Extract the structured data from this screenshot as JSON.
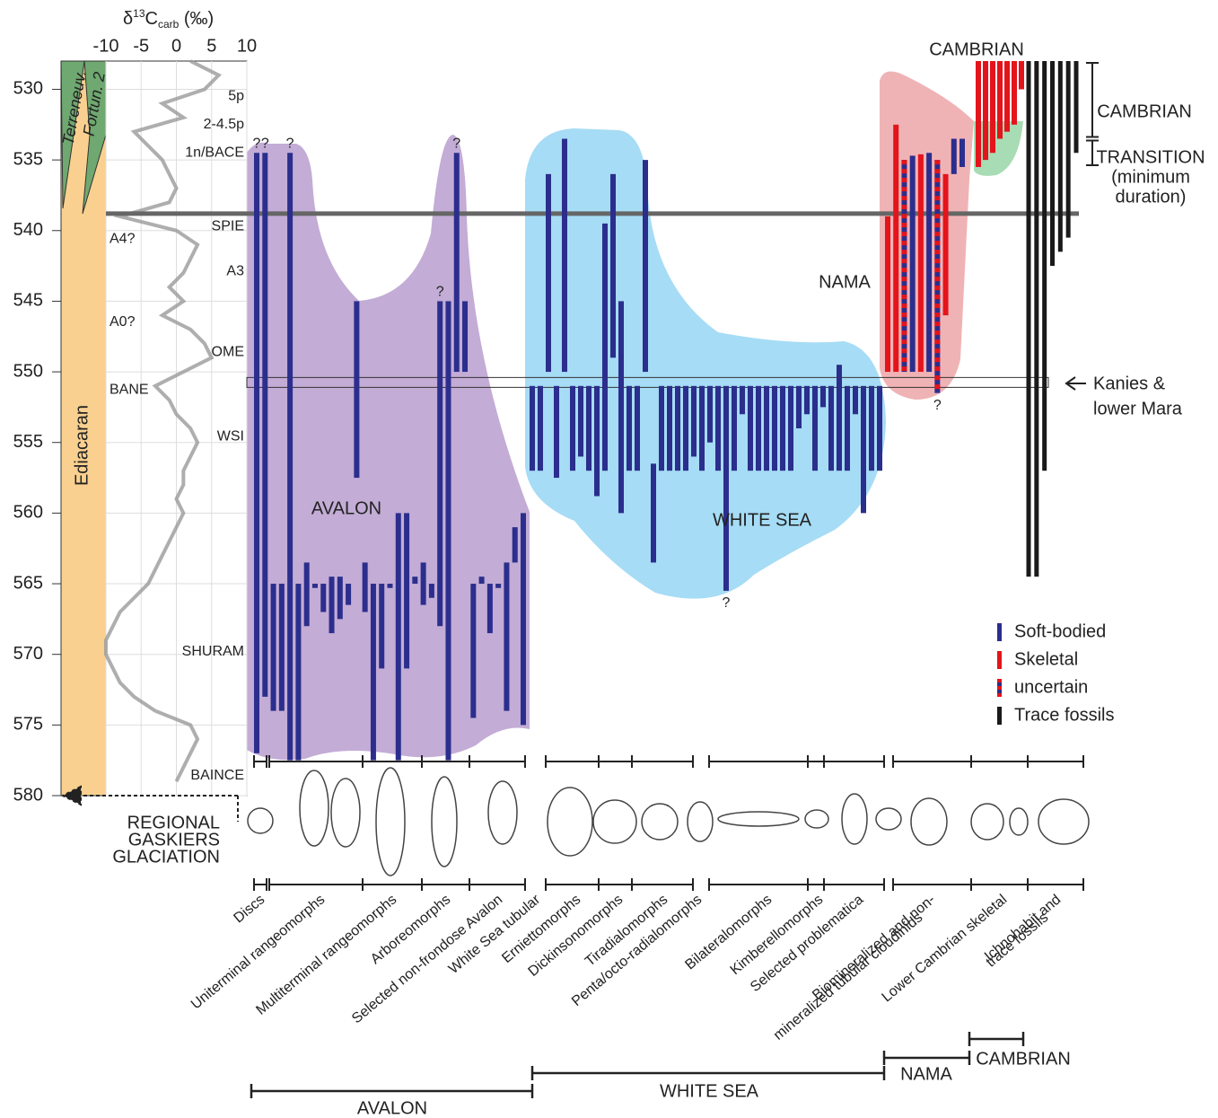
{
  "chart_data": {
    "type": "range",
    "ylim": [
      528,
      580
    ],
    "yticks": [
      530,
      535,
      540,
      545,
      550,
      555,
      560,
      565,
      570,
      575,
      580
    ],
    "isotope": {
      "title_parts": [
        "δ",
        "13",
        "C",
        "carb",
        "(‰)"
      ],
      "xlim": [
        -10,
        10
      ],
      "xticks": [
        -10,
        -5,
        0,
        5,
        10
      ],
      "color": "#9a9a9a",
      "ages": [
        528,
        529,
        530,
        531,
        532,
        533,
        534,
        535,
        536,
        537,
        538,
        539,
        540,
        541,
        542,
        543,
        544,
        545,
        546,
        547,
        548,
        549,
        550,
        551,
        552,
        553,
        554,
        555,
        556,
        557,
        558,
        559,
        560,
        561,
        562,
        563,
        564,
        565,
        566,
        567,
        568,
        569,
        570,
        571,
        572,
        573,
        574,
        575,
        576,
        577,
        578,
        579
      ],
      "values": [
        2,
        6,
        4,
        -2,
        1,
        -6,
        -4,
        -2,
        -1,
        0,
        -1,
        -8,
        0,
        3,
        2,
        1,
        -1,
        1,
        -2,
        2,
        4,
        5,
        1,
        -3,
        -1,
        0,
        2,
        3,
        2,
        1,
        1,
        0,
        1,
        0,
        -1,
        -2,
        -3,
        -4,
        -6,
        -8,
        -9,
        -10,
        -10,
        -9,
        -8,
        -6,
        -3,
        2,
        3,
        2,
        1,
        0
      ],
      "excursions": [
        {
          "label": "5p",
          "age": 530.5
        },
        {
          "label": "2-4.5p",
          "age": 532.5
        },
        {
          "label": "1n/BACE",
          "age": 534.5
        },
        {
          "label": "SPIE",
          "age": 539.7
        },
        {
          "label": "A4?",
          "age": 540.6
        },
        {
          "label": "A3",
          "age": 542.9
        },
        {
          "label": "A0?",
          "age": 546.5
        },
        {
          "label": "OME",
          "age": 548.6
        },
        {
          "label": "BANE",
          "age": 551.3
        },
        {
          "label": "WSI",
          "age": 554.6
        },
        {
          "label": "SHURAM",
          "age": 569.8
        },
        {
          "label": "BAINCE",
          "age": 578.6
        }
      ]
    },
    "chronostrat": [
      "Terreneuv.",
      "Fortun. 2",
      "Ediacaran"
    ],
    "boundary": 538.8,
    "kanies": {
      "label": [
        "Kanies &",
        "lower Mara"
      ],
      "range": [
        550.4,
        551.1
      ]
    },
    "legend": [
      {
        "kind": "soft",
        "name": "Soft-bodied",
        "color": "#2b2e8c"
      },
      {
        "kind": "skeletal",
        "name": "Skeletal",
        "color": "#e3141b"
      },
      {
        "kind": "uncertain",
        "name": "uncertain",
        "color": "#e3141b"
      },
      {
        "kind": "trace",
        "name": "Trace fossils",
        "color": "#1a1a1a"
      }
    ],
    "groups": [
      {
        "name": "AVALON",
        "bars": [
          {
            "range": [
              534.5,
              577
            ],
            "kind": "soft",
            "note": "?",
            "note_at": "top"
          },
          {
            "range": [
              534.5,
              573
            ],
            "kind": "soft",
            "note": "?",
            "note_at": "top"
          },
          {
            "range": [
              565,
              574
            ],
            "kind": "soft"
          },
          {
            "range": [
              565,
              574
            ],
            "kind": "soft"
          },
          {
            "range": [
              534.5,
              577.5
            ],
            "kind": "soft",
            "note": "?",
            "note_at": "top"
          },
          {
            "range": [
              565,
              577.5
            ],
            "kind": "soft"
          },
          {
            "range": [
              563.5,
              568
            ],
            "kind": "soft"
          },
          {
            "range": [
              565,
              565.3
            ],
            "kind": "soft"
          },
          {
            "range": [
              565,
              567
            ],
            "kind": "soft"
          },
          {
            "range": [
              564.5,
              568.5
            ],
            "kind": "soft"
          },
          {
            "range": [
              564.5,
              567.5
            ],
            "kind": "soft"
          },
          {
            "range": [
              565,
              566.5
            ],
            "kind": "soft"
          },
          {
            "range": [
              545,
              557.5
            ],
            "kind": "soft"
          },
          {
            "range": [
              563.5,
              567
            ],
            "kind": "soft"
          },
          {
            "range": [
              565,
              577.5
            ],
            "kind": "soft"
          },
          {
            "range": [
              565,
              571
            ],
            "kind": "soft"
          },
          {
            "range": [
              565,
              565.3
            ],
            "kind": "soft"
          },
          {
            "range": [
              560,
              577.5
            ],
            "kind": "soft"
          },
          {
            "range": [
              560,
              571
            ],
            "kind": "soft"
          },
          {
            "range": [
              564.5,
              565
            ],
            "kind": "soft"
          },
          {
            "range": [
              563.5,
              566.5
            ],
            "kind": "soft"
          },
          {
            "range": [
              565,
              566
            ],
            "kind": "soft"
          },
          {
            "range": [
              545,
              568
            ],
            "kind": "soft",
            "note": "?",
            "note_at": "top"
          },
          {
            "range": [
              545,
              577.5
            ],
            "kind": "soft"
          },
          {
            "range": [
              534.5,
              550
            ],
            "kind": "soft",
            "note": "?",
            "note_at": "top"
          },
          {
            "range": [
              545,
              550
            ],
            "kind": "soft"
          },
          {
            "range": [
              565,
              574.5
            ],
            "kind": "soft"
          },
          {
            "range": [
              564.5,
              565
            ],
            "kind": "soft"
          },
          {
            "range": [
              565,
              568.5
            ],
            "kind": "soft"
          },
          {
            "range": [
              565,
              565.3
            ],
            "kind": "soft"
          },
          {
            "range": [
              563.5,
              574
            ],
            "kind": "soft"
          },
          {
            "range": [
              561,
              563.5
            ],
            "kind": "soft"
          },
          {
            "range": [
              560,
              575
            ],
            "kind": "soft"
          }
        ]
      },
      {
        "name": "WHITE SEA",
        "bars": [
          {
            "range": [
              551,
              557
            ],
            "kind": "soft"
          },
          {
            "range": [
              551,
              557
            ],
            "kind": "soft"
          },
          {
            "range": [
              536,
              550
            ],
            "kind": "soft"
          },
          {
            "range": [
              551,
              557.5
            ],
            "kind": "soft"
          },
          {
            "range": [
              533.5,
              550
            ],
            "kind": "soft"
          },
          {
            "range": [
              551,
              557
            ],
            "kind": "soft"
          },
          {
            "range": [
              551,
              556
            ],
            "kind": "soft"
          },
          {
            "range": [
              551,
              557
            ],
            "kind": "soft"
          },
          {
            "range": [
              551,
              558.8
            ],
            "kind": "soft"
          },
          {
            "range": [
              539.5,
              557
            ],
            "kind": "soft"
          },
          {
            "range": [
              536,
              549
            ],
            "kind": "soft"
          },
          {
            "range": [
              545,
              560
            ],
            "kind": "soft"
          },
          {
            "range": [
              551,
              557
            ],
            "kind": "soft"
          },
          {
            "range": [
              551,
              557
            ],
            "kind": "soft"
          },
          {
            "range": [
              535,
              550
            ],
            "kind": "soft"
          },
          {
            "range": [
              556.5,
              563.5
            ],
            "kind": "soft"
          },
          {
            "range": [
              551,
              557
            ],
            "kind": "soft"
          },
          {
            "range": [
              551,
              557
            ],
            "kind": "soft"
          },
          {
            "range": [
              551,
              557
            ],
            "kind": "soft"
          },
          {
            "range": [
              551,
              557
            ],
            "kind": "soft"
          },
          {
            "range": [
              551,
              556
            ],
            "kind": "soft"
          },
          {
            "range": [
              551,
              557
            ],
            "kind": "soft"
          },
          {
            "range": [
              551,
              555
            ],
            "kind": "soft"
          },
          {
            "range": [
              551,
              557
            ],
            "kind": "soft"
          },
          {
            "range": [
              551,
              565.5
            ],
            "kind": "soft",
            "note": "?",
            "note_at": "bottom"
          },
          {
            "range": [
              551,
              557
            ],
            "kind": "soft"
          },
          {
            "range": [
              551,
              553
            ],
            "kind": "soft"
          },
          {
            "range": [
              551,
              557
            ],
            "kind": "soft"
          },
          {
            "range": [
              551,
              557
            ],
            "kind": "soft"
          },
          {
            "range": [
              551,
              557
            ],
            "kind": "soft"
          },
          {
            "range": [
              551,
              557
            ],
            "kind": "soft"
          },
          {
            "range": [
              551,
              557
            ],
            "kind": "soft"
          },
          {
            "range": [
              551,
              557
            ],
            "kind": "soft"
          },
          {
            "range": [
              551,
              554
            ],
            "kind": "soft"
          },
          {
            "range": [
              551,
              553
            ],
            "kind": "soft"
          },
          {
            "range": [
              551,
              557
            ],
            "kind": "soft"
          },
          {
            "range": [
              551,
              552.5
            ],
            "kind": "soft"
          },
          {
            "range": [
              551,
              557
            ],
            "kind": "soft"
          },
          {
            "range": [
              549.5,
              557
            ],
            "kind": "soft"
          },
          {
            "range": [
              551,
              557
            ],
            "kind": "soft"
          },
          {
            "range": [
              551,
              553
            ],
            "kind": "soft"
          },
          {
            "range": [
              551,
              560
            ],
            "kind": "soft"
          },
          {
            "range": [
              551,
              557
            ],
            "kind": "soft"
          },
          {
            "range": [
              551,
              557
            ],
            "kind": "soft"
          }
        ]
      },
      {
        "name": "NAMA",
        "bars": [
          {
            "range": [
              539,
              550
            ],
            "kind": "skeletal"
          },
          {
            "range": [
              532.5,
              550
            ],
            "kind": "skeletal"
          },
          {
            "range": [
              535,
              550
            ],
            "kind": "uncertain"
          },
          {
            "range": [
              534.7,
              550
            ],
            "kind": "soft"
          },
          {
            "range": [
              534.6,
              550
            ],
            "kind": "skeletal"
          },
          {
            "range": [
              534.5,
              550
            ],
            "kind": "soft"
          },
          {
            "range": [
              535,
              551.5
            ],
            "kind": "uncertain",
            "note": "?",
            "note_at": "bottom"
          },
          {
            "range": [
              536,
              546
            ],
            "kind": "skeletal"
          },
          {
            "range": [
              533.5,
              536
            ],
            "kind": "soft"
          },
          {
            "range": [
              533.5,
              535.5
            ],
            "kind": "soft"
          }
        ]
      },
      {
        "name": "CAMBRIAN",
        "bars": [
          {
            "range": [
              528,
              535.5
            ],
            "kind": "skeletal"
          },
          {
            "range": [
              528,
              535
            ],
            "kind": "skeletal"
          },
          {
            "range": [
              528,
              534.5
            ],
            "kind": "skeletal"
          },
          {
            "range": [
              528,
              533.5
            ],
            "kind": "skeletal"
          },
          {
            "range": [
              528,
              533
            ],
            "kind": "skeletal"
          },
          {
            "range": [
              528,
              532.5
            ],
            "kind": "skeletal"
          },
          {
            "range": [
              528,
              530
            ],
            "kind": "skeletal"
          }
        ]
      },
      {
        "bars": [
          {
            "range": [
              528,
              564.5
            ],
            "kind": "trace"
          },
          {
            "range": [
              528,
              564.5
            ],
            "kind": "trace"
          },
          {
            "range": [
              528,
              557
            ],
            "kind": "trace"
          },
          {
            "range": [
              528,
              542.5
            ],
            "kind": "trace"
          },
          {
            "range": [
              528,
              541.5
            ],
            "kind": "trace"
          },
          {
            "range": [
              528,
              540.5
            ],
            "kind": "trace"
          },
          {
            "range": [
              528,
              534.5
            ],
            "kind": "trace"
          }
        ]
      }
    ],
    "stages": [
      {
        "label": [
          "CAMBRIAN"
        ],
        "range": [
          528,
          533.5
        ]
      },
      {
        "label": [
          "TRANSITION",
          "(minimum",
          "duration)"
        ],
        "range": [
          533.5,
          535.5
        ]
      }
    ],
    "glaciation": [
      "REGIONAL",
      "GASKIERS",
      "GLACIATION"
    ],
    "morphotypes": [
      [
        "Discs"
      ],
      [
        "Uniterminal rangeomorphs"
      ],
      [
        "Multiterminal rangeomorphs"
      ],
      [
        "Arboreomorphs"
      ],
      [
        "Selected non-frondose Avalon"
      ],
      [
        "White Sea tubular"
      ],
      [
        "Erniettomorphs"
      ],
      [
        "Dickinsonomorphs"
      ],
      [
        "Tiradialomorphs"
      ],
      [
        "Penta/octo-radialomorphs"
      ],
      [
        "Bilateralomorphs"
      ],
      [
        "Kimberellomorphs"
      ],
      [
        "Selected problematica"
      ],
      [
        "Biomineralized and non-",
        "mineralized tubular cloudinids"
      ],
      [
        "Lower Cambrian skeletal"
      ],
      [
        "Ichnohabit and",
        "trace fossils"
      ]
    ]
  }
}
